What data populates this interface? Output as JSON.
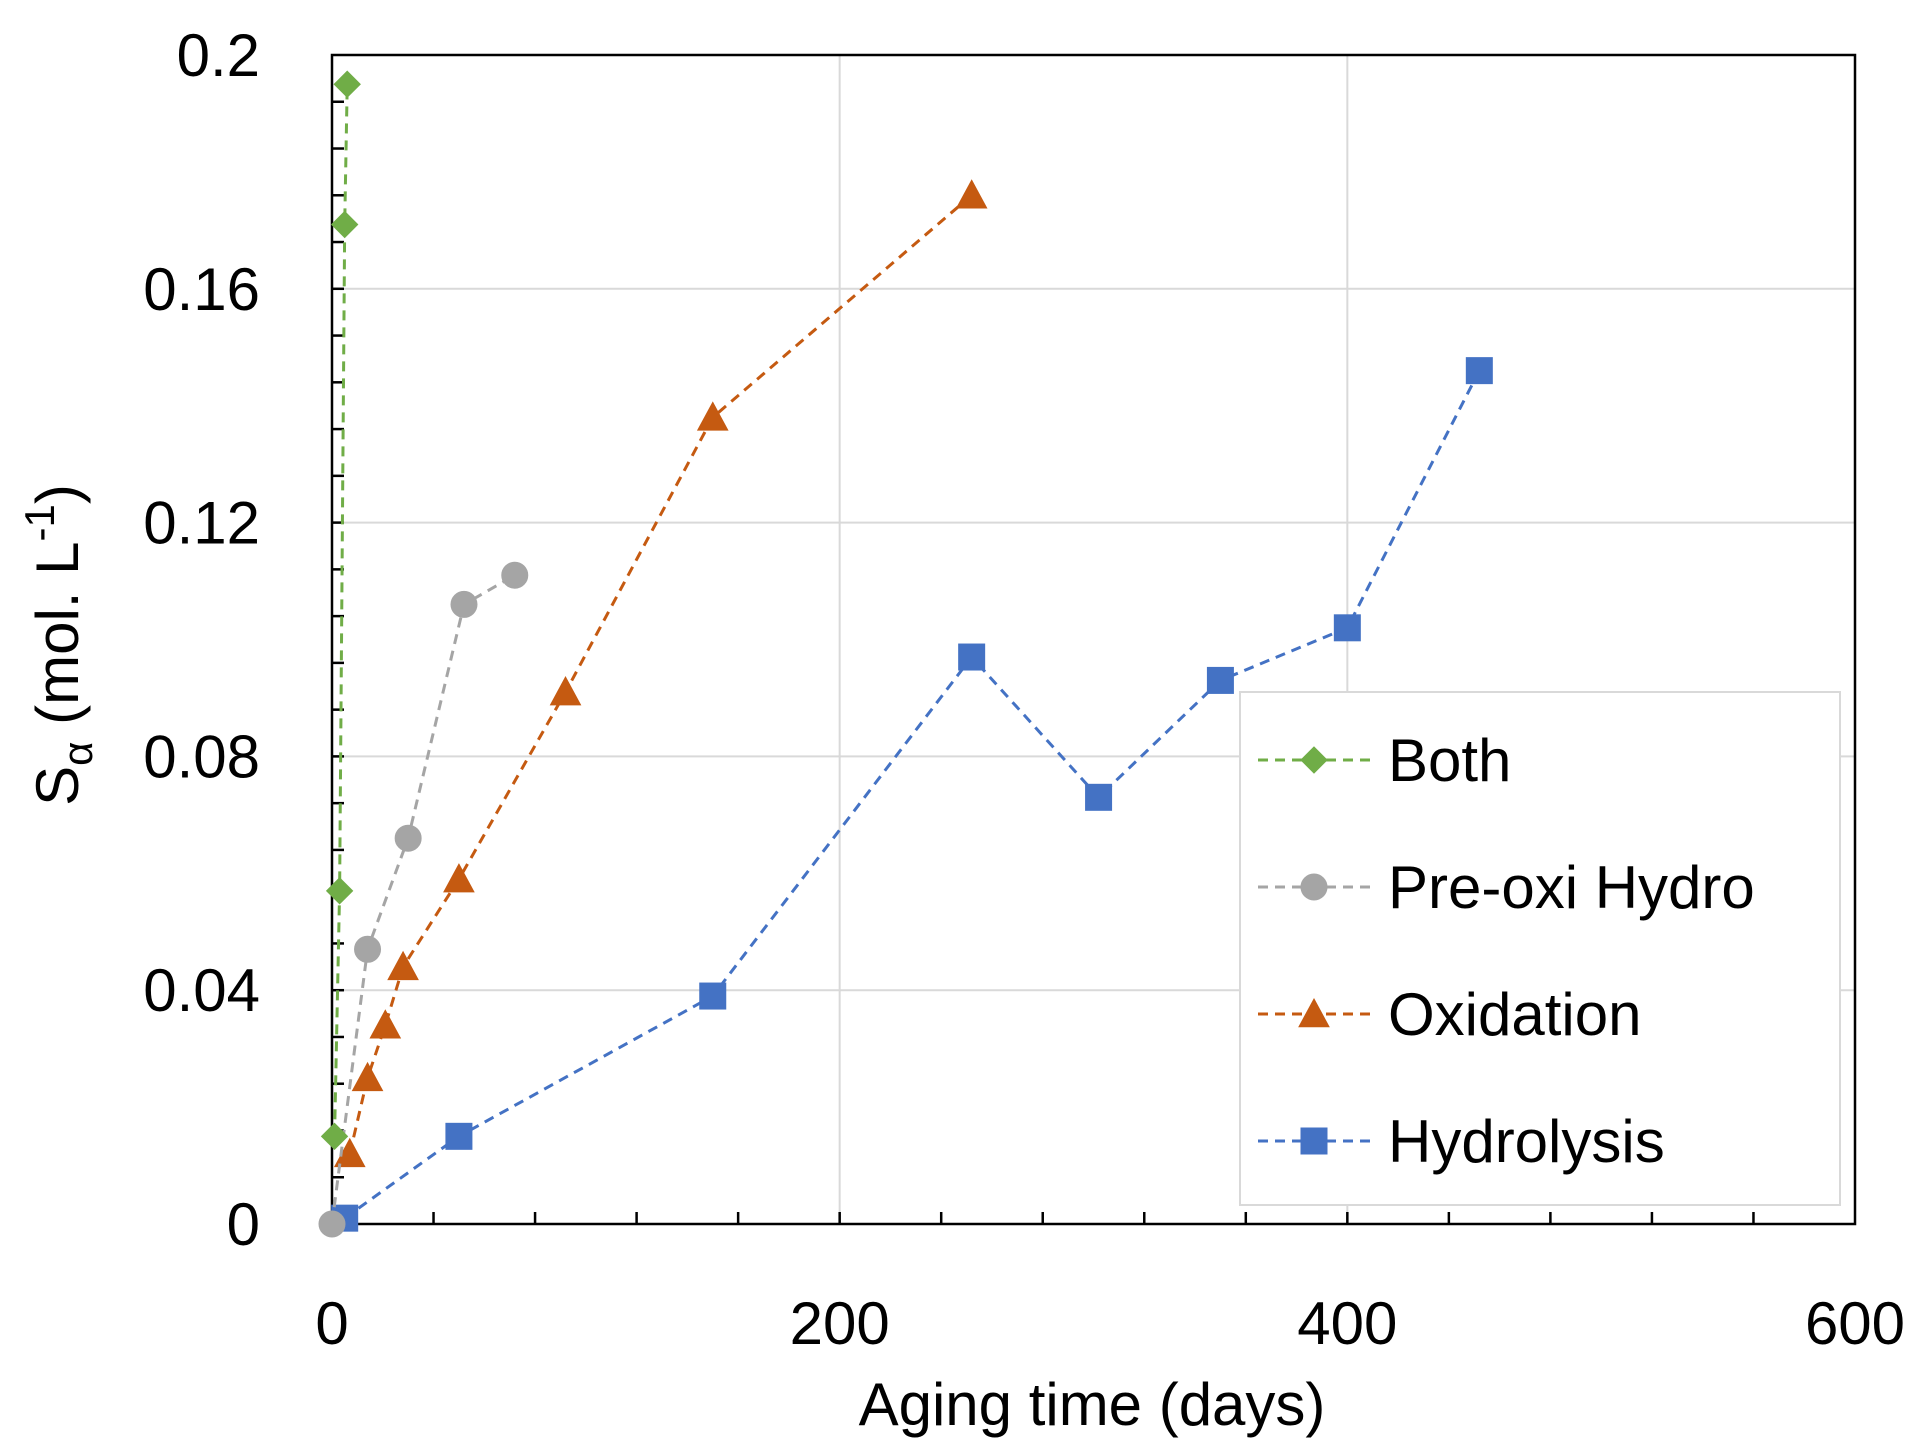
{
  "chart_data": {
    "type": "line",
    "xlabel": "Aging time (days)",
    "ylabel_main": "S",
    "ylabel_sub": "α",
    "ylabel_rest": " (mol. L",
    "ylabel_sup": "-1",
    "ylabel_close": ")",
    "xlim": [
      0,
      600
    ],
    "ylim": [
      0,
      0.2
    ],
    "x_ticks": [
      0,
      200,
      400,
      600
    ],
    "x_tick_labels": [
      "0",
      "200",
      "400",
      "600"
    ],
    "y_ticks": [
      0,
      0.04,
      0.08,
      0.12,
      0.16,
      0.2
    ],
    "y_tick_labels": [
      "0",
      "0.04",
      "0.08",
      "0.12",
      "0.16",
      "0.2"
    ],
    "x_minor_step": 40,
    "y_minor_step": 0.008,
    "grid": true,
    "legend_position": "lower-right",
    "series": [
      {
        "name": "Both",
        "color": "#70ad47",
        "marker": "diamond",
        "x": [
          1,
          3,
          5,
          6
        ],
        "y": [
          0.015,
          0.057,
          0.171,
          0.195
        ]
      },
      {
        "name": "Pre-oxi Hydro",
        "color": "#a5a5a5",
        "marker": "circle",
        "x": [
          0,
          14,
          30,
          52,
          72
        ],
        "y": [
          0,
          0.047,
          0.066,
          0.106,
          0.111
        ]
      },
      {
        "name": "Oxidation",
        "color": "#c55a11",
        "marker": "triangle",
        "x": [
          7,
          14,
          21,
          28,
          50,
          92,
          150,
          252
        ],
        "y": [
          0.012,
          0.025,
          0.034,
          0.044,
          0.059,
          0.091,
          0.138,
          0.176
        ]
      },
      {
        "name": "Hydrolysis",
        "color": "#4472c4",
        "marker": "square",
        "x": [
          5,
          50,
          150,
          252,
          302,
          350,
          400,
          452
        ],
        "y": [
          0.001,
          0.015,
          0.039,
          0.097,
          0.073,
          0.093,
          0.102,
          0.146
        ]
      }
    ]
  }
}
